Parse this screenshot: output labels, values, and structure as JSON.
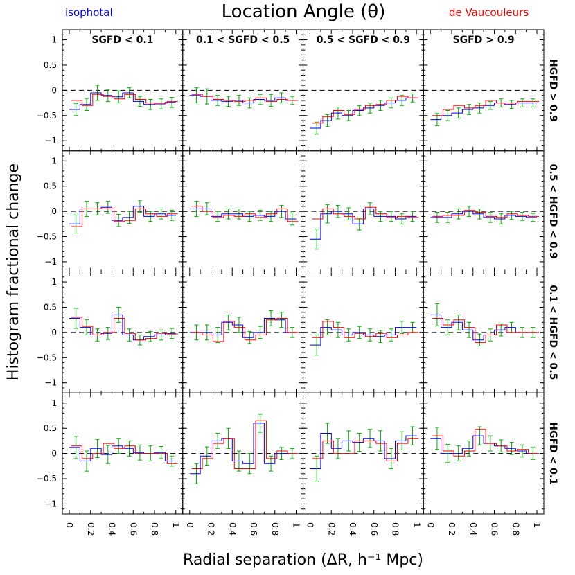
{
  "title": "Location Angle (θ)",
  "legend": {
    "isophotal": {
      "label": "isophotal",
      "color": "#0000ff"
    },
    "devauc": {
      "label": "de Vaucouleurs",
      "color": "#ff0000"
    }
  },
  "errorbar_color": "#00aa00",
  "ylabel": "Histogram fractional change",
  "xlabel": "Radial separation (ΔR, h⁻¹ Mpc)",
  "col_labels": [
    "SGFD < 0.1",
    "0.1 < SGFD < 0.5",
    "0.5 < SGFD < 0.9",
    "SGFD > 0.9"
  ],
  "row_labels": [
    "HGFD > 0.9",
    "0.5 < HGFD < 0.9",
    "0.1 < HGFD < 0.5",
    "HGFD < 0.1"
  ],
  "chart_data": {
    "type": "line",
    "subtype": "step-histogram-grid",
    "rows": 4,
    "cols": 4,
    "xlim": [
      0,
      1
    ],
    "ylim": [
      -1.2,
      1.2
    ],
    "x_ticks": [
      0,
      0.2,
      0.4,
      0.6,
      0.8,
      1
    ],
    "y_ticks": [
      -1,
      -0.5,
      0,
      0.5,
      1
    ],
    "x_tick_labels": [
      "0",
      "0.2",
      "0.4",
      "0.6",
      "0.8",
      "1"
    ],
    "y_tick_labels": [
      "−1",
      "−0.5",
      "0",
      "0.5",
      "1"
    ],
    "reference_line": 0,
    "bin_edges": [
      0,
      0.1,
      0.2,
      0.3,
      0.4,
      0.5,
      0.6,
      0.7,
      0.8,
      0.9,
      1.0
    ],
    "panels": [
      {
        "row": 0,
        "col": 0,
        "isophotal": [
          -0.38,
          -0.28,
          -0.05,
          -0.1,
          -0.13,
          -0.05,
          -0.22,
          -0.28,
          -0.27,
          -0.24
        ],
        "devauc": [
          -0.2,
          -0.3,
          -0.08,
          -0.12,
          -0.17,
          -0.08,
          -0.18,
          -0.25,
          -0.25,
          -0.22
        ],
        "error": [
          0.12,
          0.12,
          0.15,
          0.12,
          0.12,
          0.1,
          0.1,
          0.1,
          0.1,
          0.1
        ]
      },
      {
        "row": 0,
        "col": 1,
        "isophotal": [
          -0.1,
          -0.12,
          -0.2,
          -0.22,
          -0.2,
          -0.25,
          -0.18,
          -0.2,
          -0.15,
          -0.2
        ],
        "devauc": [
          -0.08,
          -0.12,
          -0.18,
          -0.2,
          -0.22,
          -0.2,
          -0.15,
          -0.22,
          -0.18,
          -0.2
        ],
        "error": [
          0.15,
          0.15,
          0.1,
          0.1,
          0.1,
          0.1,
          0.1,
          0.12,
          0.1,
          0.08
        ]
      },
      {
        "row": 0,
        "col": 2,
        "isophotal": [
          -0.75,
          -0.6,
          -0.45,
          -0.5,
          -0.4,
          -0.35,
          -0.3,
          -0.25,
          -0.2,
          -0.15
        ],
        "devauc": [
          -0.65,
          -0.52,
          -0.4,
          -0.48,
          -0.38,
          -0.3,
          -0.28,
          -0.2,
          -0.12,
          -0.15
        ],
        "error": [
          0.12,
          0.12,
          0.12,
          0.1,
          0.1,
          0.1,
          0.1,
          0.1,
          0.1,
          0.08
        ]
      },
      {
        "row": 0,
        "col": 3,
        "isophotal": [
          -0.58,
          -0.5,
          -0.45,
          -0.38,
          -0.35,
          -0.3,
          -0.25,
          -0.28,
          -0.25,
          -0.25
        ],
        "devauc": [
          -0.5,
          -0.38,
          -0.3,
          -0.35,
          -0.3,
          -0.2,
          -0.25,
          -0.25,
          -0.22,
          -0.22
        ],
        "error": [
          0.12,
          0.1,
          0.1,
          0.1,
          0.1,
          0.08,
          0.08,
          0.08,
          0.08,
          0.08
        ]
      },
      {
        "row": 1,
        "col": 0,
        "isophotal": [
          -0.25,
          0.05,
          0.05,
          0.08,
          -0.18,
          -0.12,
          0.1,
          -0.1,
          -0.05,
          -0.08
        ],
        "devauc": [
          -0.3,
          0.05,
          0.05,
          0.05,
          -0.2,
          -0.18,
          0.05,
          -0.05,
          -0.1,
          -0.05
        ],
        "error": [
          0.18,
          0.15,
          0.12,
          0.12,
          0.12,
          0.12,
          0.12,
          0.1,
          0.1,
          0.1
        ]
      },
      {
        "row": 1,
        "col": 1,
        "isophotal": [
          0.05,
          0.05,
          -0.1,
          -0.05,
          -0.05,
          -0.1,
          -0.08,
          -0.1,
          0.0,
          -0.15
        ],
        "devauc": [
          0.1,
          0.0,
          -0.12,
          -0.08,
          -0.1,
          -0.05,
          -0.12,
          -0.05,
          0.05,
          -0.2
        ],
        "error": [
          0.15,
          0.12,
          0.1,
          0.1,
          0.1,
          0.1,
          0.1,
          0.1,
          0.12,
          0.12
        ]
      },
      {
        "row": 1,
        "col": 2,
        "isophotal": [
          -0.55,
          -0.05,
          0.0,
          -0.05,
          -0.25,
          0.05,
          -0.1,
          -0.1,
          -0.15,
          -0.1
        ],
        "devauc": [
          -0.15,
          0.05,
          -0.05,
          -0.1,
          -0.15,
          0.08,
          -0.05,
          -0.12,
          -0.1,
          -0.12
        ],
        "error": [
          0.2,
          0.18,
          0.12,
          0.12,
          0.12,
          0.12,
          0.1,
          0.1,
          0.1,
          0.1
        ]
      },
      {
        "row": 1,
        "col": 3,
        "isophotal": [
          -0.12,
          -0.12,
          -0.05,
          0.0,
          -0.05,
          -0.12,
          -0.15,
          -0.08,
          -0.1,
          -0.12
        ],
        "devauc": [
          -0.1,
          -0.08,
          -0.08,
          0.02,
          -0.02,
          -0.1,
          -0.12,
          -0.05,
          -0.08,
          -0.1
        ],
        "error": [
          0.1,
          0.1,
          0.1,
          0.1,
          0.1,
          0.1,
          0.1,
          0.08,
          0.08,
          0.08
        ]
      },
      {
        "row": 2,
        "col": 0,
        "isophotal": [
          0.28,
          0.1,
          -0.05,
          -0.02,
          0.35,
          -0.05,
          -0.15,
          -0.08,
          -0.05,
          -0.02
        ],
        "devauc": [
          0.3,
          0.12,
          -0.05,
          0.0,
          0.28,
          -0.02,
          -0.15,
          -0.12,
          -0.02,
          -0.03
        ],
        "error": [
          0.2,
          0.15,
          0.12,
          0.12,
          0.15,
          0.12,
          0.1,
          0.1,
          0.1,
          0.1
        ]
      },
      {
        "row": 2,
        "col": 1,
        "isophotal": [
          0.0,
          0.0,
          -0.05,
          0.2,
          0.15,
          -0.1,
          0.0,
          0.28,
          0.25,
          0.0
        ],
        "devauc": [
          0.0,
          -0.05,
          -0.18,
          0.22,
          0.1,
          -0.15,
          -0.05,
          0.25,
          0.28,
          0.0
        ],
        "error": [
          0.15,
          0.15,
          0.15,
          0.15,
          0.15,
          0.12,
          0.12,
          0.15,
          0.15,
          0.1
        ]
      },
      {
        "row": 2,
        "col": 2,
        "isophotal": [
          -0.25,
          0.1,
          0.05,
          -0.05,
          0.0,
          -0.05,
          -0.08,
          -0.05,
          0.1,
          0.1
        ],
        "devauc": [
          -0.1,
          0.22,
          0.1,
          -0.1,
          -0.02,
          -0.08,
          -0.02,
          -0.1,
          -0.05,
          0.0
        ],
        "error": [
          0.2,
          0.15,
          0.15,
          0.12,
          0.12,
          0.12,
          0.12,
          0.12,
          0.12,
          0.1
        ]
      },
      {
        "row": 2,
        "col": 3,
        "isophotal": [
          0.35,
          0.1,
          0.2,
          0.05,
          -0.15,
          -0.05,
          0.05,
          0.1,
          0.0,
          0.0
        ],
        "devauc": [
          0.28,
          0.15,
          0.25,
          0.1,
          -0.2,
          -0.05,
          0.15,
          0.0,
          0.0,
          0.0
        ],
        "error": [
          0.22,
          0.15,
          0.15,
          0.15,
          0.12,
          0.12,
          0.12,
          0.1,
          0.1,
          0.1
        ]
      },
      {
        "row": 3,
        "col": 0,
        "isophotal": [
          0.12,
          -0.15,
          0.1,
          -0.02,
          0.15,
          0.1,
          0.02,
          0.0,
          0.02,
          -0.15
        ],
        "devauc": [
          0.15,
          -0.1,
          0.0,
          0.2,
          0.1,
          0.15,
          0.0,
          0.0,
          0.0,
          -0.2
        ],
        "error": [
          0.22,
          0.2,
          0.18,
          0.18,
          0.15,
          0.15,
          0.15,
          0.15,
          0.12,
          0.1
        ]
      },
      {
        "row": 3,
        "col": 1,
        "isophotal": [
          -0.4,
          -0.05,
          0.25,
          0.3,
          -0.15,
          -0.2,
          0.6,
          -0.2,
          0.0,
          0.0
        ],
        "devauc": [
          -0.3,
          -0.1,
          0.2,
          0.3,
          -0.3,
          -0.3,
          0.65,
          -0.1,
          0.05,
          0.0
        ],
        "error": [
          0.2,
          0.18,
          0.15,
          0.2,
          0.2,
          0.2,
          0.18,
          0.15,
          0.12,
          0.1
        ]
      },
      {
        "row": 3,
        "col": 2,
        "isophotal": [
          -0.3,
          0.4,
          0.1,
          0.25,
          0.22,
          0.3,
          0.25,
          -0.1,
          0.25,
          0.35
        ],
        "devauc": [
          -0.1,
          0.25,
          0.0,
          0.0,
          0.25,
          0.25,
          0.2,
          -0.15,
          0.2,
          0.3
        ],
        "error": [
          0.25,
          0.2,
          0.2,
          0.2,
          0.18,
          0.18,
          0.2,
          0.2,
          0.18,
          0.18
        ]
      },
      {
        "row": 3,
        "col": 3,
        "isophotal": [
          0.3,
          0.0,
          0.0,
          0.1,
          0.35,
          0.2,
          0.15,
          0.1,
          0.05,
          0.0
        ],
        "devauc": [
          0.35,
          0.05,
          -0.05,
          0.05,
          0.48,
          0.2,
          0.15,
          0.05,
          0.08,
          0.0
        ],
        "error": [
          0.22,
          0.18,
          0.15,
          0.15,
          0.18,
          0.15,
          0.12,
          0.12,
          0.12,
          0.12
        ]
      }
    ]
  }
}
